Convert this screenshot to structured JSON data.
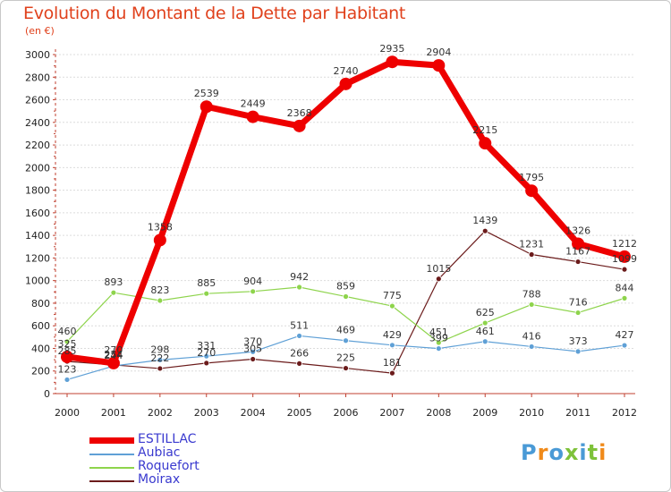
{
  "title": "Evolution du Montant de la Dette par Habitant",
  "subtitle": "(en €)",
  "logo_text": "Proxiti",
  "chart_data": {
    "type": "line",
    "title": "Evolution du Montant de la Dette par Habitant",
    "subtitle": "(en €)",
    "x": [
      "2000",
      "2001",
      "2002",
      "2003",
      "2004",
      "2005",
      "2006",
      "2007",
      "2008",
      "2009",
      "2010",
      "2011",
      "2012"
    ],
    "ylim": [
      0,
      3000
    ],
    "yticks": [
      0,
      200,
      400,
      600,
      800,
      1000,
      1200,
      1400,
      1600,
      1800,
      2000,
      2200,
      2400,
      2600,
      2800,
      3000
    ],
    "grid": "horizontal",
    "legend_position": "bottom-left",
    "series": [
      {
        "name": "Moirax",
        "color": "#6b1b1b",
        "values": [
          285,
          254,
          222,
          270,
          305,
          266,
          225,
          181,
          1015,
          1439,
          1231,
          1167,
          1099
        ]
      },
      {
        "name": "Aubiac",
        "color": "#5fa0d6",
        "values": [
          123,
          244,
          298,
          331,
          370,
          511,
          469,
          429,
          399,
          461,
          416,
          373,
          427
        ]
      },
      {
        "name": "Roquefort",
        "color": "#8ed44c",
        "values": [
          460,
          893,
          823,
          885,
          904,
          942,
          859,
          775,
          451,
          625,
          788,
          716,
          844
        ]
      },
      {
        "name": "ESTILLAC",
        "color": "#ee0000",
        "values": [
          325,
          270,
          1358,
          2539,
          2449,
          2368,
          2740,
          2935,
          2904,
          2215,
          1795,
          1326,
          1212
        ]
      }
    ],
    "legend_order": [
      "ESTILLAC",
      "Aubiac",
      "Roquefort",
      "Moirax"
    ]
  }
}
